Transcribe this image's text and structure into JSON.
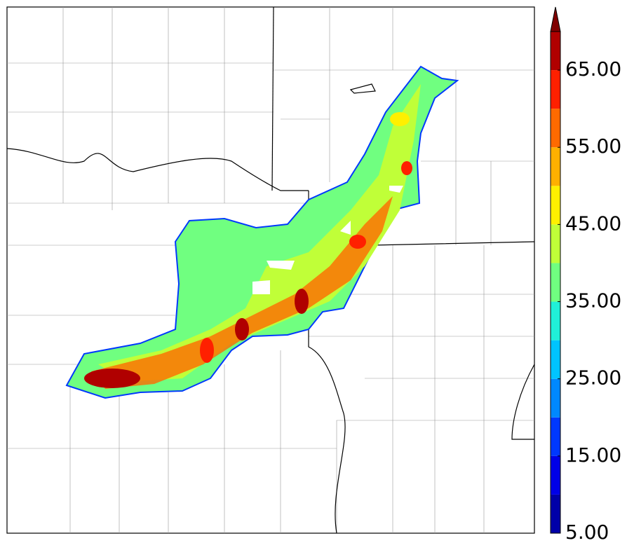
{
  "colorbar": {
    "levels": [
      5,
      10,
      15,
      20,
      25,
      30,
      35,
      40,
      45,
      50,
      55,
      60,
      65,
      70
    ],
    "colors": [
      "#0000a8",
      "#0000e8",
      "#0038ff",
      "#0088ff",
      "#00c4ff",
      "#20f0d8",
      "#70ff80",
      "#c0ff38",
      "#fff000",
      "#ffb000",
      "#ff6a00",
      "#ff2000",
      "#b00000"
    ],
    "extend": "max",
    "extend_color": "#800000",
    "ticks": [
      {
        "value": 5,
        "label": "5.00"
      },
      {
        "value": 15,
        "label": "15.00"
      },
      {
        "value": 25,
        "label": "25.00"
      },
      {
        "value": 35,
        "label": "35.00"
      },
      {
        "value": 45,
        "label": "45.00"
      },
      {
        "value": 55,
        "label": "55.00"
      },
      {
        "value": 65,
        "label": "65.00"
      }
    ]
  }
}
